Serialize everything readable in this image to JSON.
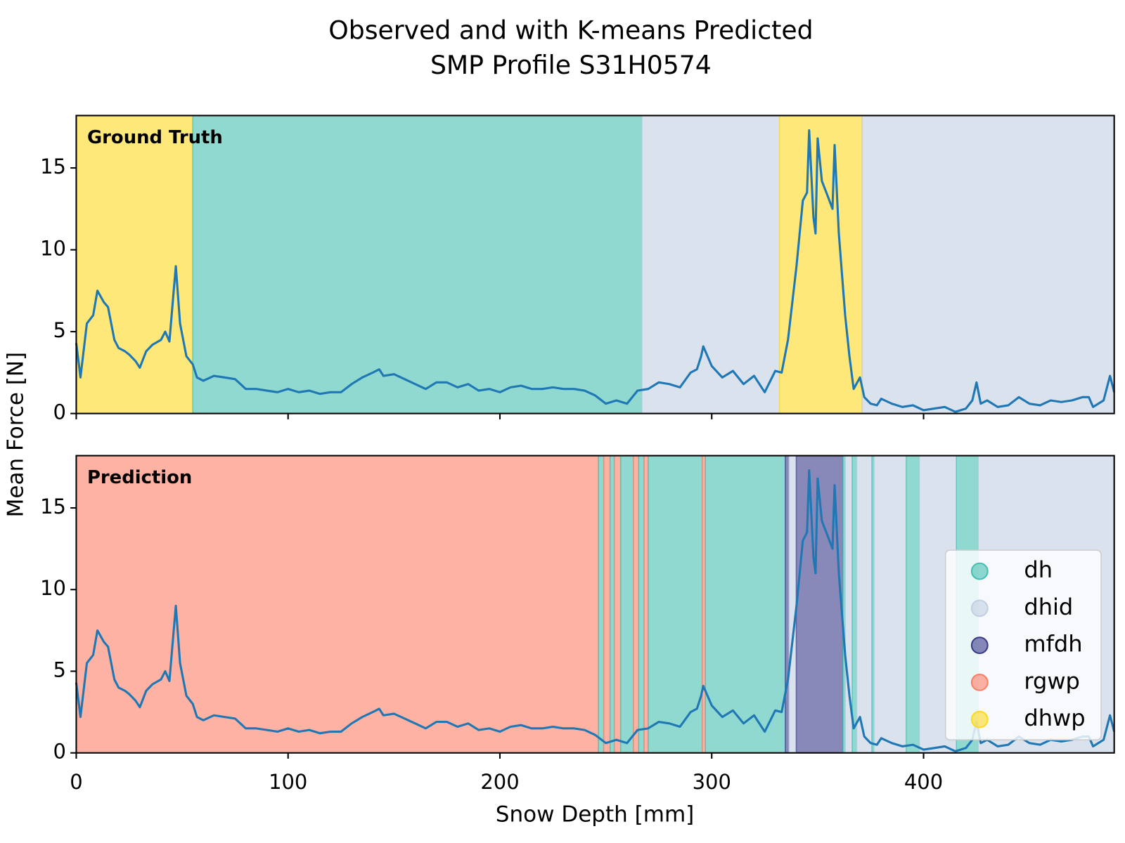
{
  "chart_data": {
    "type": "line",
    "title": [
      "Observed and with K-means Predicted",
      "SMP Profile S31H0574"
    ],
    "x_label": "Snow Depth [mm]",
    "y_label": "Mean Force [N]",
    "color": "#1f77b4",
    "x": [
      0,
      2,
      5,
      8,
      10,
      13,
      15,
      18,
      20,
      23,
      25,
      28,
      30,
      33,
      36,
      40,
      42,
      44,
      46,
      47,
      49,
      52,
      55,
      57,
      60,
      65,
      70,
      75,
      80,
      85,
      90,
      95,
      100,
      105,
      110,
      115,
      120,
      125,
      130,
      135,
      140,
      143,
      145,
      150,
      155,
      160,
      165,
      170,
      175,
      180,
      185,
      190,
      195,
      200,
      205,
      210,
      215,
      220,
      225,
      230,
      235,
      240,
      245,
      250,
      255,
      260,
      265,
      270,
      275,
      280,
      285,
      290,
      293,
      295,
      296,
      300,
      305,
      310,
      315,
      320,
      325,
      330,
      333,
      336,
      340,
      343,
      345,
      346,
      348,
      349,
      350,
      352,
      355,
      357,
      358,
      360,
      363,
      365,
      367,
      370,
      372,
      375,
      378,
      380,
      385,
      390,
      395,
      400,
      405,
      410,
      415,
      420,
      423,
      425,
      427,
      430,
      435,
      440,
      445,
      450,
      455,
      460,
      465,
      470,
      475,
      478,
      480,
      485,
      488,
      490
    ],
    "values": [
      4.3,
      2.2,
      5.5,
      6,
      7.5,
      6.8,
      6.5,
      4.5,
      4,
      3.8,
      3.6,
      3.2,
      2.8,
      3.8,
      4.2,
      4.5,
      5,
      4.4,
      7.5,
      9,
      5.5,
      3.5,
      3,
      2.2,
      2,
      2.3,
      2.2,
      2.1,
      1.5,
      1.5,
      1.4,
      1.3,
      1.5,
      1.3,
      1.4,
      1.2,
      1.3,
      1.3,
      1.8,
      2.2,
      2.5,
      2.7,
      2.3,
      2.4,
      2.1,
      1.8,
      1.5,
      1.9,
      1.9,
      1.6,
      1.8,
      1.4,
      1.5,
      1.3,
      1.6,
      1.7,
      1.5,
      1.5,
      1.6,
      1.5,
      1.5,
      1.4,
      1.1,
      0.6,
      0.8,
      0.6,
      1.4,
      1.5,
      1.9,
      1.8,
      1.6,
      2.5,
      2.7,
      3.5,
      4.1,
      2.9,
      2.2,
      2.6,
      1.8,
      2.3,
      1.3,
      2.6,
      2.5,
      4.5,
      9,
      13,
      13.5,
      17.3,
      12,
      11,
      16.8,
      14.2,
      13.2,
      12.5,
      16.4,
      11,
      6,
      3.5,
      1.5,
      2.2,
      1,
      0.6,
      0.5,
      0.9,
      0.6,
      0.4,
      0.5,
      0.2,
      0.3,
      0.4,
      0.1,
      0.3,
      0.8,
      1.9,
      0.6,
      0.8,
      0.4,
      0.5,
      1.0,
      0.6,
      0.5,
      0.8,
      0.7,
      0.8,
      1.0,
      1.0,
      0.4,
      0.8,
      2.3,
      1.3
    ],
    "xlim": [
      0,
      490
    ],
    "ylim": [
      0,
      18.2
    ],
    "xticks": [
      0,
      100,
      200,
      300,
      400
    ],
    "yticks": [
      0,
      5,
      10,
      15
    ],
    "legend_loc": "lower right",
    "legend": [
      {
        "name": "dh",
        "color": "#45bfb2"
      },
      {
        "name": "dhid",
        "color": "#c1cfe2"
      },
      {
        "name": "mfdh",
        "color": "#3b3b8a"
      },
      {
        "name": "rgwp",
        "color": "#fb7e67"
      },
      {
        "name": "dhwp",
        "color": "#fed920"
      }
    ],
    "panels": [
      {
        "label": "Ground Truth",
        "segments": [
          {
            "start": 0,
            "end": 55,
            "class": "dhwp"
          },
          {
            "start": 55,
            "end": 267,
            "class": "dh"
          },
          {
            "start": 267,
            "end": 332,
            "class": "dhid"
          },
          {
            "start": 332,
            "end": 371,
            "class": "dhwp"
          },
          {
            "start": 371,
            "end": 490,
            "class": "dhid"
          }
        ]
      },
      {
        "label": "Prediction",
        "segments": [
          {
            "start": 0,
            "end": 246.5,
            "class": "rgwp"
          },
          {
            "start": 246.5,
            "end": 249,
            "class": "dh"
          },
          {
            "start": 249,
            "end": 252,
            "class": "rgwp"
          },
          {
            "start": 252,
            "end": 254,
            "class": "dh"
          },
          {
            "start": 254,
            "end": 257,
            "class": "rgwp"
          },
          {
            "start": 257,
            "end": 263,
            "class": "dh"
          },
          {
            "start": 263,
            "end": 265.5,
            "class": "rgwp"
          },
          {
            "start": 265.5,
            "end": 268,
            "class": "dh"
          },
          {
            "start": 268,
            "end": 270,
            "class": "rgwp"
          },
          {
            "start": 270,
            "end": 295.5,
            "class": "dh"
          },
          {
            "start": 295.5,
            "end": 297,
            "class": "rgwp"
          },
          {
            "start": 297,
            "end": 334.7,
            "class": "dh"
          },
          {
            "start": 334.7,
            "end": 336.4,
            "class": "mfdh"
          },
          {
            "start": 336.4,
            "end": 339.9,
            "class": "dhid"
          },
          {
            "start": 339.9,
            "end": 361.9,
            "class": "mfdh"
          },
          {
            "start": 361.9,
            "end": 363,
            "class": "dh"
          },
          {
            "start": 363,
            "end": 366.3,
            "class": "dhid"
          },
          {
            "start": 366.3,
            "end": 368.4,
            "class": "dh"
          },
          {
            "start": 368.4,
            "end": 375.6,
            "class": "dhid"
          },
          {
            "start": 375.6,
            "end": 376.6,
            "class": "dh"
          },
          {
            "start": 376.6,
            "end": 391.8,
            "class": "dhid"
          },
          {
            "start": 391.8,
            "end": 398,
            "class": "dh"
          },
          {
            "start": 398,
            "end": 415.5,
            "class": "dhid"
          },
          {
            "start": 415.5,
            "end": 425.8,
            "class": "dh"
          },
          {
            "start": 425.8,
            "end": 490,
            "class": "dhid"
          }
        ]
      }
    ]
  }
}
